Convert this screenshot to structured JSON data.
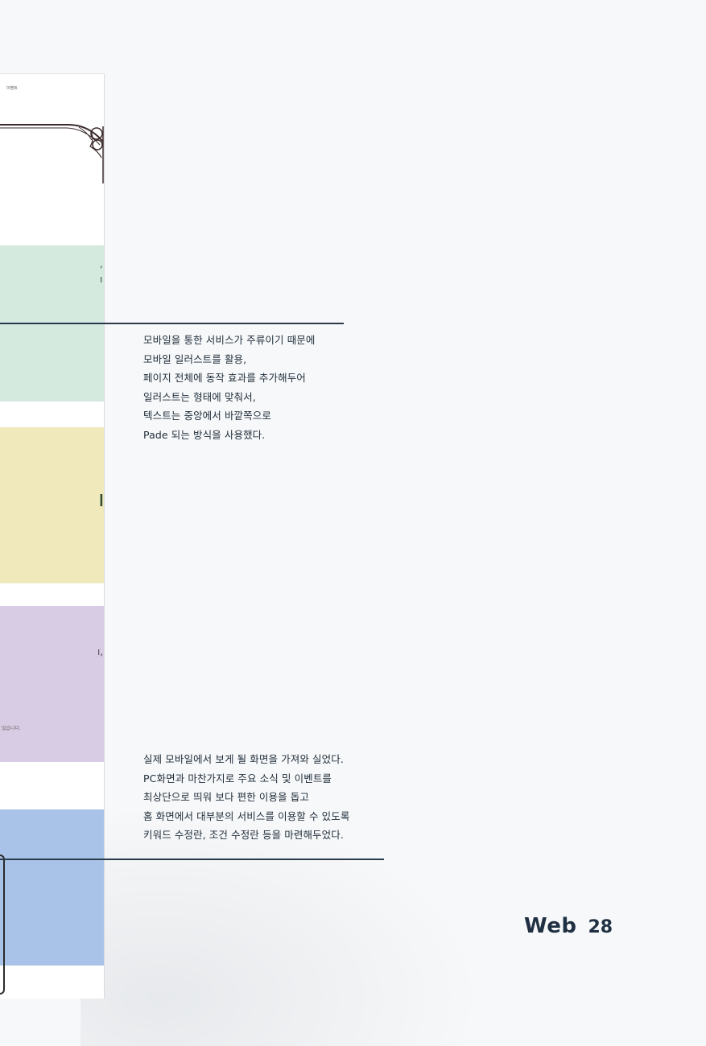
{
  "mockup": {
    "top_label": "이벤트",
    "cut_texts": [
      {
        "text": ",",
        "band": "green"
      },
      {
        "text": "ı",
        "band": "green"
      },
      {
        "text": "ı",
        "band": "yellow"
      },
      {
        "text": "ı,",
        "band": "purple"
      },
      {
        "text": "었습니다.",
        "band": "purple"
      }
    ],
    "band_colors": {
      "green": "#d4eadf",
      "yellow": "#efe9bb",
      "purple": "#d8cbe4",
      "blue": "#a9c3e8"
    }
  },
  "captions": {
    "first": [
      "모바일을 통한 서비스가 주류이기 때문에",
      "모바일 일러스트를 활용,",
      "페이지 전체에 동작 효과를 추가해두어",
      "일러스트는 형태에 맞춰서,",
      "텍스트는 중앙에서 바깥쪽으로",
      "Pade 되는 방식을 사용했다."
    ],
    "second": [
      "실제 모바일에서 보게 될 화면을 가져와 실었다.",
      "PC화면과 마찬가지로 주요 소식 및 이벤트를",
      "최상단으로 띄워 보다 편한 이용을 돕고",
      "홈 화면에서 대부분의 서비스를 이용할 수 있도록",
      "키워드 수정란, 조건 수정란 등을 마련해두었다."
    ]
  },
  "footer": {
    "section": "Web",
    "page": "28"
  }
}
